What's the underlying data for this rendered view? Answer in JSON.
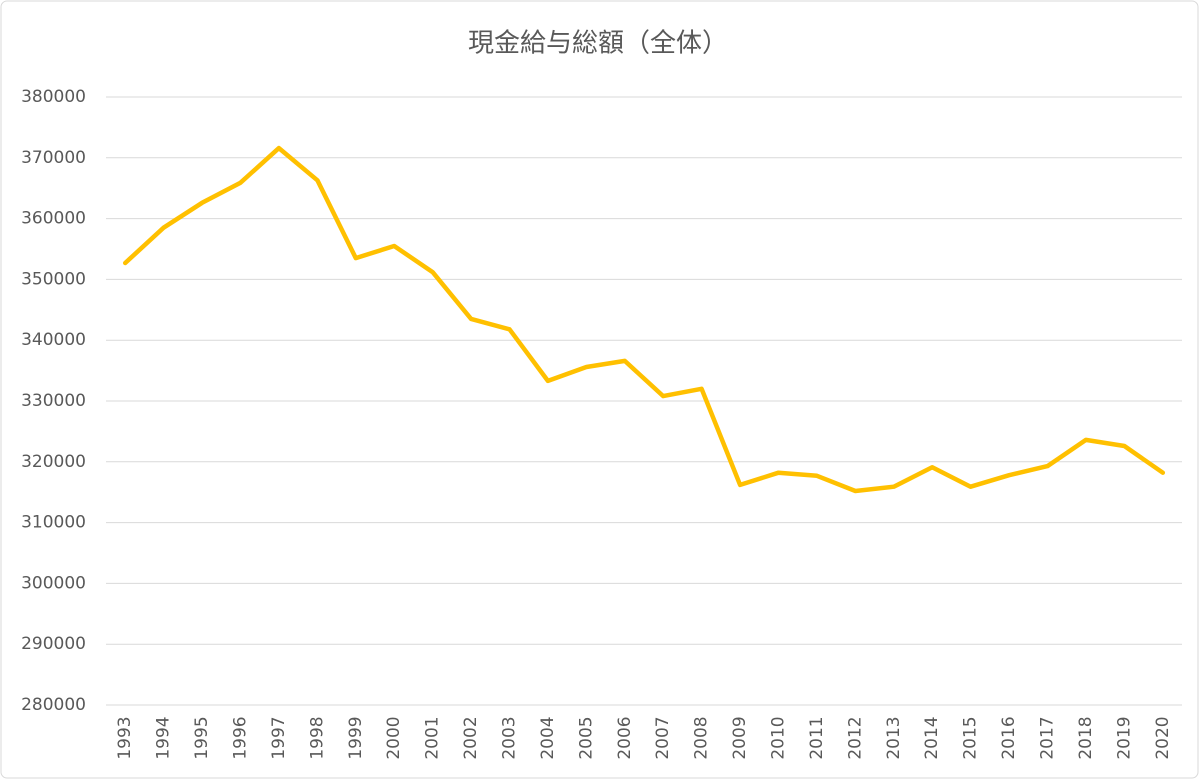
{
  "chart_data": {
    "type": "line",
    "title": "現金給与総額（全体）",
    "categories": [
      "1993",
      "1994",
      "1995",
      "1996",
      "1997",
      "1998",
      "1999",
      "2000",
      "2001",
      "2002",
      "2003",
      "2004",
      "2005",
      "2006",
      "2007",
      "2008",
      "2009",
      "2010",
      "2011",
      "2012",
      "2013",
      "2014",
      "2015",
      "2016",
      "2017",
      "2018",
      "2019",
      "2020"
    ],
    "values": [
      352700,
      358500,
      362600,
      365900,
      371600,
      366300,
      353500,
      355500,
      351200,
      343500,
      341800,
      333300,
      335600,
      336600,
      330800,
      332000,
      316200,
      318200,
      317700,
      315200,
      315900,
      319100,
      315900,
      317800,
      319300,
      323600,
      322600,
      318200
    ],
    "color": "#ffc000",
    "ylim": [
      280000,
      380000
    ],
    "yticks": [
      280000,
      290000,
      300000,
      310000,
      320000,
      330000,
      340000,
      350000,
      360000,
      370000,
      380000
    ],
    "grid": true
  }
}
